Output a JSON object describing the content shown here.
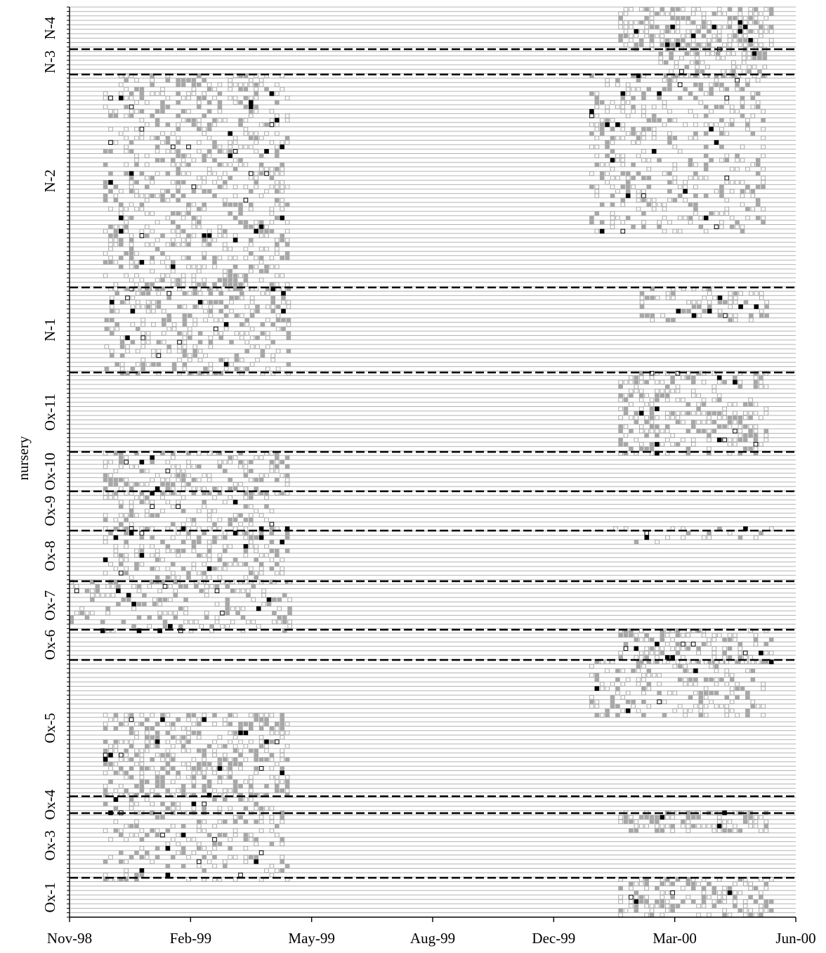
{
  "chart_data": {
    "type": "scatter",
    "title": "",
    "xlabel": "",
    "ylabel": "nursery",
    "x_ticks": [
      "Nov-98",
      "Feb-99",
      "May-99",
      "Aug-99",
      "Dec-99",
      "Mar-00",
      "Jun-00"
    ],
    "x_range": [
      "1998-11-01",
      "2000-06-01"
    ],
    "rows_total": 205,
    "grid": true,
    "legend": "none",
    "colors": {
      "grid": "#b4b4b4",
      "divider": "#000000",
      "gray_marker": "#a8a8a8",
      "black_marker": "#000000",
      "open_marker": "#ffffff"
    },
    "marker_kinds": [
      "open",
      "gray",
      "black",
      "open-dark"
    ],
    "groups": [
      {
        "name": "N-4",
        "rows": [
          0,
          11
        ],
        "period": [
          "2000-01-12",
          "2000-05-14"
        ],
        "density": 0.56
      },
      {
        "name": "N-3",
        "rows": [
          11,
          18
        ],
        "period": [
          "2000-02-13",
          "2000-05-10"
        ],
        "density": 0.55
      },
      {
        "name": "N-2",
        "rows": [
          18,
          75
        ],
        "period": [
          "1998-11-28",
          "1999-04-27"
        ],
        "density": 0.34
      },
      {
        "name": "N-2",
        "rows": [
          18,
          60
        ],
        "period": [
          "1999-12-20",
          "2000-05-10"
        ],
        "density": 0.33
      },
      {
        "name": "N-1",
        "rows": [
          75,
          97
        ],
        "period": [
          "1998-11-29",
          "1999-04-27"
        ],
        "density": 0.35
      },
      {
        "name": "N-1",
        "rows": [
          75,
          84
        ],
        "period": [
          "2000-01-29",
          "2000-05-09"
        ],
        "density": 0.4
      },
      {
        "name": "Ox-11",
        "rows": [
          97,
          118
        ],
        "period": [
          "2000-01-12",
          "2000-05-10"
        ],
        "density": 0.42
      },
      {
        "name": "Ox-10",
        "rows": [
          118,
          128
        ],
        "period": [
          "1998-11-28",
          "1999-04-27"
        ],
        "density": 0.38
      },
      {
        "name": "Ox-9",
        "rows": [
          128,
          139
        ],
        "period": [
          "1998-11-28",
          "1999-04-18"
        ],
        "density": 0.3
      },
      {
        "name": "Ox-8",
        "rows": [
          139,
          152
        ],
        "period": [
          "1998-11-28",
          "1999-04-27"
        ],
        "density": 0.38
      },
      {
        "name": "Ox-8",
        "rows": [
          139,
          142
        ],
        "period": [
          "2000-01-08",
          "2000-05-14"
        ],
        "density": 0.18
      },
      {
        "name": "Ox-7",
        "rows": [
          152,
          165
        ],
        "period": [
          "1998-11-01",
          "1999-04-27"
        ],
        "density": 0.32
      },
      {
        "name": "Ox-6",
        "rows": [
          165,
          173
        ],
        "period": [
          "2000-01-12",
          "2000-05-14"
        ],
        "density": 0.5
      },
      {
        "name": "Ox-6",
        "rows": [
          173,
          186
        ],
        "period": [
          "1999-12-20",
          "2000-05-10"
        ],
        "density": 0.35
      },
      {
        "name": "Ox-5",
        "rows": [
          186,
          206
        ],
        "period": [
          "1998-11-28",
          "1999-04-27"
        ],
        "density": 0.47
      },
      {
        "name": "Ox-4",
        "rows": [
          206,
          211
        ],
        "period": [
          "1998-11-28",
          "1999-04-13"
        ],
        "density": 0.35
      },
      {
        "name": "Ox-3",
        "rows": [
          211,
          227
        ],
        "period": [
          "1998-11-28",
          "1999-04-27"
        ],
        "density": 0.3
      },
      {
        "name": "Ox-3",
        "rows": [
          211,
          215
        ],
        "period": [
          "2000-01-12",
          "2000-05-10"
        ],
        "density": 0.5
      },
      {
        "name": "Ox-1",
        "rows": [
          227,
          237
        ],
        "period": [
          "2000-01-12",
          "2000-05-14"
        ],
        "density": 0.45
      }
    ],
    "nursery_labels": [
      {
        "label": "N-4"
      },
      {
        "label": "N-3"
      },
      {
        "label": "N-2"
      },
      {
        "label": "N-1"
      },
      {
        "label": "Ox-11"
      },
      {
        "label": "Ox-10"
      },
      {
        "label": "Ox-9"
      },
      {
        "label": "Ox-8"
      },
      {
        "label": "Ox-7"
      },
      {
        "label": "Ox-6"
      },
      {
        "label": "Ox-5"
      },
      {
        "label": "Ox-4"
      },
      {
        "label": "Ox-3"
      },
      {
        "label": "Ox-1"
      }
    ]
  }
}
